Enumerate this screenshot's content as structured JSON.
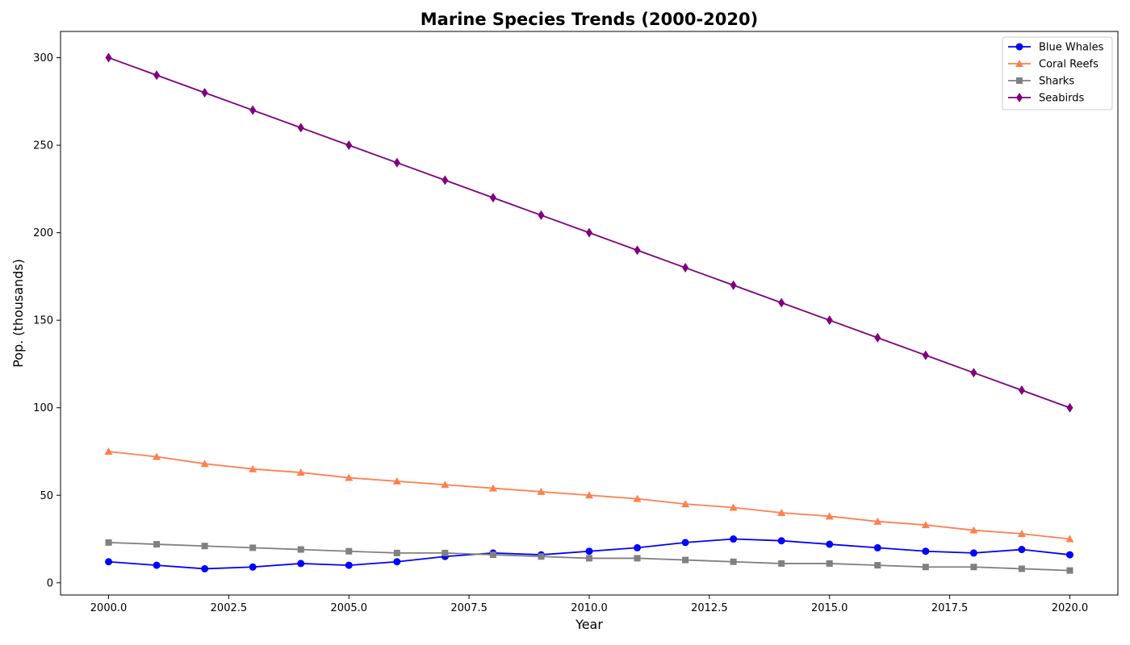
{
  "chart_data": {
    "type": "line",
    "title": "Marine Species Trends (2000-2020)",
    "xlabel": "Year",
    "ylabel": "Pop. (thousands)",
    "xlim": [
      1999,
      2021
    ],
    "ylim": [
      -7,
      315
    ],
    "x_ticks": [
      2000.0,
      2002.5,
      2005.0,
      2007.5,
      2010.0,
      2012.5,
      2015.0,
      2017.5,
      2020.0
    ],
    "x_tick_labels": [
      "2000.0",
      "2002.5",
      "2005.0",
      "2007.5",
      "2010.0",
      "2012.5",
      "2015.0",
      "2017.5",
      "2020.0"
    ],
    "y_ticks": [
      0,
      50,
      100,
      150,
      200,
      250,
      300
    ],
    "y_tick_labels": [
      "0",
      "50",
      "100",
      "150",
      "200",
      "250",
      "300"
    ],
    "grid": false,
    "legend_position": "top-right",
    "x": [
      2000,
      2001,
      2002,
      2003,
      2004,
      2005,
      2006,
      2007,
      2008,
      2009,
      2010,
      2011,
      2012,
      2013,
      2014,
      2015,
      2016,
      2017,
      2018,
      2019,
      2020
    ],
    "series": [
      {
        "name": "Blue Whales",
        "color": "#0000ff",
        "marker": "circle",
        "values": [
          12,
          10,
          8,
          9,
          11,
          10,
          12,
          15,
          17,
          16,
          18,
          20,
          23,
          25,
          24,
          22,
          20,
          18,
          17,
          19,
          16
        ]
      },
      {
        "name": "Coral Reefs",
        "color": "#ff7f50",
        "marker": "triangle",
        "values": [
          75,
          72,
          68,
          65,
          63,
          60,
          58,
          56,
          54,
          52,
          50,
          48,
          45,
          43,
          40,
          38,
          35,
          33,
          30,
          28,
          25
        ]
      },
      {
        "name": "Sharks",
        "color": "#808080",
        "marker": "square",
        "values": [
          23,
          22,
          21,
          20,
          19,
          18,
          17,
          17,
          16,
          15,
          14,
          14,
          13,
          12,
          11,
          11,
          10,
          9,
          9,
          8,
          7
        ]
      },
      {
        "name": "Seabirds",
        "color": "#800080",
        "marker": "diamond",
        "values": [
          300,
          290,
          280,
          270,
          260,
          250,
          240,
          230,
          220,
          210,
          200,
          190,
          180,
          170,
          160,
          150,
          140,
          130,
          120,
          110,
          100
        ]
      }
    ]
  }
}
